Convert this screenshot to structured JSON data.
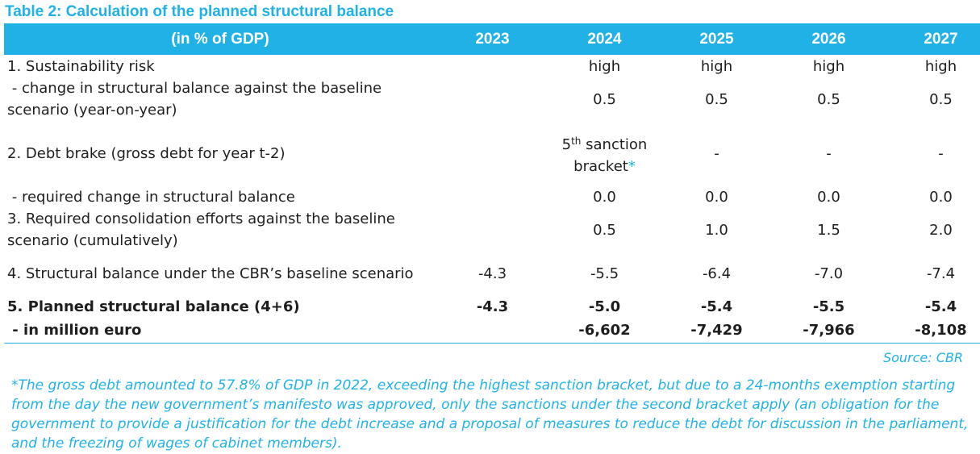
{
  "title": "Table 2: Calculation of the planned structural balance",
  "header": {
    "label": "(in % of GDP)",
    "years": [
      "2023",
      "2024",
      "2025",
      "2026",
      "2027"
    ]
  },
  "rows": [
    {
      "label": "1. Sustainability risk",
      "values": [
        "",
        "high",
        "high",
        "high",
        "high"
      ]
    },
    {
      "label": " - change in structural balance against the baseline scenario (year-on-year)",
      "values": [
        "",
        "0.5",
        "0.5",
        "0.5",
        "0.5"
      ]
    },
    {
      "label": "2. Debt brake (gross debt for year t-2)",
      "values": [
        "",
        "",
        "-",
        "-",
        "-"
      ],
      "debt_brake_2024": {
        "number": "5",
        "suffix": "th",
        "text": "sanction bracket",
        "mark": "*"
      }
    },
    {
      "label": " - required change in structural balance",
      "values": [
        "",
        "0.0",
        "0.0",
        "0.0",
        "0.0"
      ]
    },
    {
      "label": "3. Required consolidation efforts against the baseline scenario (cumulatively)",
      "values": [
        "",
        "0.5",
        "1.0",
        "1.5",
        "2.0"
      ]
    },
    {
      "label": "4. Structural balance under the CBR’s baseline scenario",
      "values": [
        "-4.3",
        "-5.5",
        "-6.4",
        "-7.0",
        "-7.4"
      ]
    },
    {
      "label": "5. Planned structural balance (4+6)",
      "values": [
        "-4.3",
        "-5.0",
        "-5.4",
        "-5.5",
        "-5.4"
      ]
    },
    {
      "label": " - in million euro",
      "values": [
        "",
        "-6,602",
        "-7,429",
        "-7,966",
        "-8,108"
      ]
    }
  ],
  "source": "Source: CBR",
  "footnote": "*The gross debt amounted to 57.8% of GDP in 2022, exceeding the highest sanction bracket, but due to a 24-months exemption starting from the day the new government’s manifesto was approved, only the sanctions under the second bracket apply (an obligation for the government to provide a justification for the debt increase and a proposal of measures to reduce the debt for discussion in the parliament, and the freezing of wages of cabinet members).",
  "colors": {
    "accent": "#20b2e6",
    "text": "#1e1e1e"
  }
}
